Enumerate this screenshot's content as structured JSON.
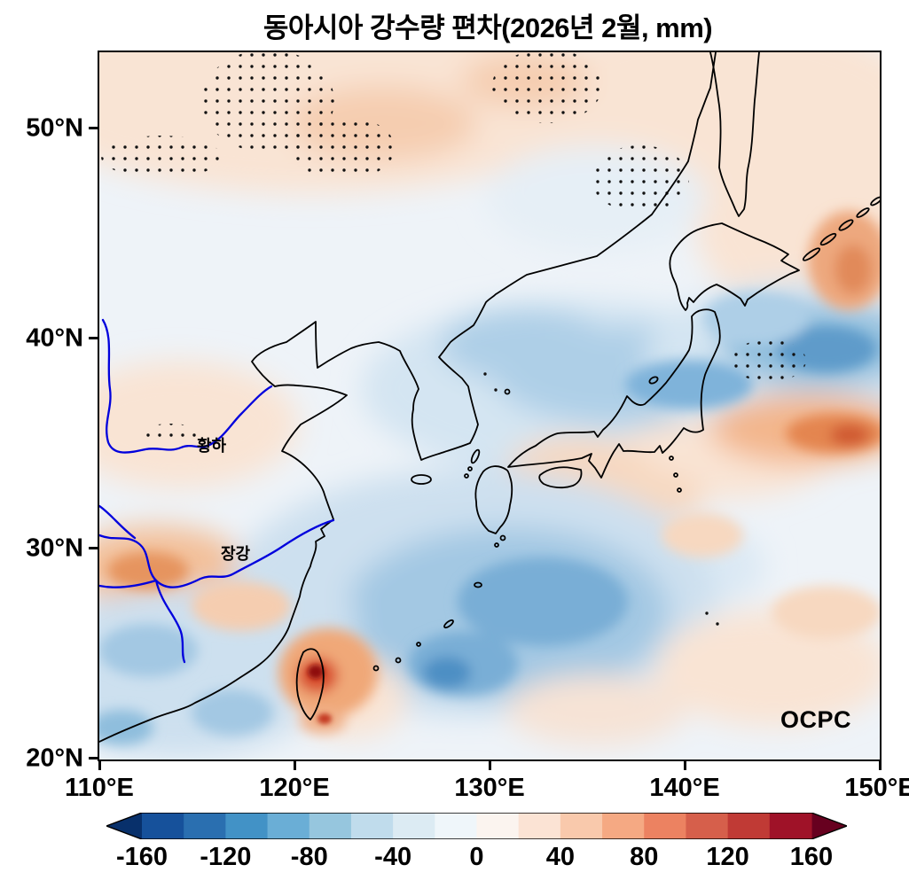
{
  "title": "동아시아 강수량 편차(2026년 2월, mm)",
  "axes": {
    "lat_ticks": [
      "50°N",
      "40°N",
      "30°N",
      "20°N"
    ],
    "lon_ticks": [
      "110°E",
      "120°E",
      "130°E",
      "140°E",
      "150°E"
    ]
  },
  "map_labels": {
    "yellow_river": "황하",
    "yangtze_river": "장강"
  },
  "logo": {
    "text": "OCPC"
  },
  "colorbar": {
    "ticks": [
      "-160",
      "-120",
      "-80",
      "-40",
      "0",
      "40",
      "80",
      "120",
      "160"
    ],
    "segment_colors": [
      "#16519b",
      "#2a6fb0",
      "#4292c6",
      "#6aaed6",
      "#96c6de",
      "#c0dcec",
      "#dcebf3",
      "#eff6fa",
      "#fbf4ef",
      "#fbe3d4",
      "#f9c9ac",
      "#f5a983",
      "#ec8261",
      "#d65f4b",
      "#c03a35",
      "#9f1228"
    ],
    "left_arrow_color": "#08306b",
    "right_arrow_color": "#67001f"
  },
  "chart_data": {
    "type": "heatmap",
    "title": "동아시아 강수량 편차(2026년 2월, mm)",
    "variable": "precipitation anomaly",
    "units": "mm",
    "period_label": "2026년 2월",
    "lon_range": [
      110,
      150
    ],
    "lat_range": [
      20,
      53.5
    ],
    "colorbar_ticks": [
      -160,
      -120,
      -80,
      -40,
      0,
      40,
      80,
      120,
      160
    ],
    "grid_lons": [
      110,
      115,
      120,
      125,
      130,
      135,
      140,
      145,
      150
    ],
    "grid_lats": [
      50,
      45,
      40,
      35,
      30,
      25,
      20
    ],
    "values_mm": [
      [
        10,
        15,
        20,
        25,
        15,
        10,
        5,
        10,
        15
      ],
      [
        10,
        10,
        10,
        10,
        5,
        10,
        -5,
        20,
        40
      ],
      [
        5,
        10,
        0,
        -10,
        -20,
        -40,
        -60,
        -60,
        -40
      ],
      [
        10,
        20,
        0,
        -10,
        10,
        -10,
        -20,
        60,
        40
      ],
      [
        40,
        30,
        -10,
        -30,
        -40,
        -20,
        10,
        -10,
        10
      ],
      [
        -20,
        -20,
        120,
        -60,
        -60,
        -30,
        -10,
        10,
        10
      ],
      [
        -10,
        -20,
        -20,
        -30,
        -20,
        -10,
        10,
        20,
        10
      ]
    ],
    "extremes": [
      {
        "lat": 23.5,
        "lon": 121.3,
        "value_mm": 160,
        "note": "Taiwan positive maximum"
      },
      {
        "lat": 35.5,
        "lon": 145.5,
        "value_mm": 100
      },
      {
        "lat": 38.5,
        "lon": 143.5,
        "value_mm": -80
      },
      {
        "lat": 24.5,
        "lon": 128.0,
        "value_mm": -70
      },
      {
        "lat": 43.5,
        "lon": 148.0,
        "value_mm": 60
      }
    ],
    "rivers_shown": [
      "황하",
      "장강"
    ],
    "stippling_regions_shown": true,
    "legend_position": "bottom",
    "grid": false
  }
}
